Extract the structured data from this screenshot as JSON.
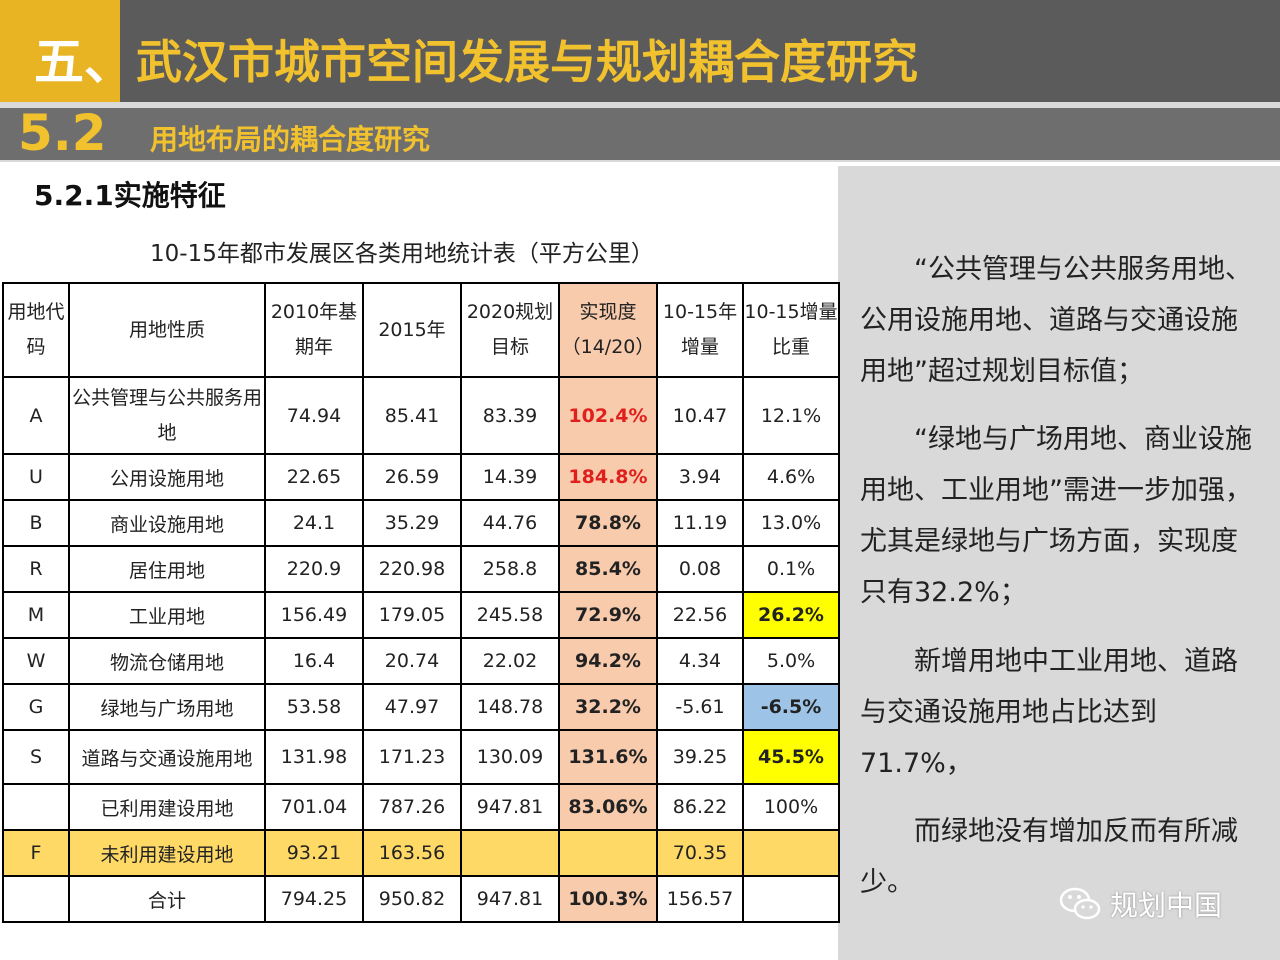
{
  "header": {
    "number": "五、",
    "title": "武汉市城市空间发展与规划耦合度研究",
    "sub_number": "5.2",
    "sub_title": "用地布局的耦合度研究"
  },
  "section": {
    "title": "5.2.1实施特征",
    "table_caption": "10-15年都市发展区各类用地统计表（平方公里）"
  },
  "table": {
    "headers": [
      "用地代码",
      "用地性质",
      "2010年基期年",
      "2015年",
      "2020规划目标",
      "实现度（14/20）",
      "10-15年增量",
      "10-15增量比重"
    ],
    "rows": [
      {
        "code": "A",
        "name": "公共管理与公共服务用地",
        "y2010": "74.94",
        "y2015": "85.41",
        "y2020": "83.39",
        "ratio": "102.4%",
        "increase": "10.47",
        "share": "12.1%"
      },
      {
        "code": "U",
        "name": "公用设施用地",
        "y2010": "22.65",
        "y2015": "26.59",
        "y2020": "14.39",
        "ratio": "184.8%",
        "increase": "3.94",
        "share": "4.6%"
      },
      {
        "code": "B",
        "name": "商业设施用地",
        "y2010": "24.1",
        "y2015": "35.29",
        "y2020": "44.76",
        "ratio": "78.8%",
        "increase": "11.19",
        "share": "13.0%"
      },
      {
        "code": "R",
        "name": "居住用地",
        "y2010": "220.9",
        "y2015": "220.98",
        "y2020": "258.8",
        "ratio": "85.4%",
        "increase": "0.08",
        "share": "0.1%"
      },
      {
        "code": "M",
        "name": "工业用地",
        "y2010": "156.49",
        "y2015": "179.05",
        "y2020": "245.58",
        "ratio": "72.9%",
        "increase": "22.56",
        "share": "26.2%"
      },
      {
        "code": "W",
        "name": "物流仓储用地",
        "y2010": "16.4",
        "y2015": "20.74",
        "y2020": "22.02",
        "ratio": "94.2%",
        "increase": "4.34",
        "share": "5.0%"
      },
      {
        "code": "G",
        "name": "绿地与广场用地",
        "y2010": "53.58",
        "y2015": "47.97",
        "y2020": "148.78",
        "ratio": "32.2%",
        "increase": "-5.61",
        "share": "-6.5%"
      },
      {
        "code": "S",
        "name": "道路与交通设施用地",
        "y2010": "131.98",
        "y2015": "171.23",
        "y2020": "130.09",
        "ratio": "131.6%",
        "increase": "39.25",
        "share": "45.5%"
      },
      {
        "code": "",
        "name": "已利用建设用地",
        "y2010": "701.04",
        "y2015": "787.26",
        "y2020": "947.81",
        "ratio": "83.06%",
        "increase": "86.22",
        "share": "100%"
      },
      {
        "code": "F",
        "name": "未利用建设用地",
        "y2010": "93.21",
        "y2015": "163.56",
        "y2020": "",
        "ratio": "",
        "increase": "70.35",
        "share": ""
      },
      {
        "code": "",
        "name": "合计",
        "y2010": "794.25",
        "y2015": "950.82",
        "y2020": "947.81",
        "ratio": "100.3%",
        "increase": "156.57",
        "share": ""
      }
    ]
  },
  "side": {
    "p1": "“公共管理与公共服务用地、公用设施用地、道路与交通设施用地”超过规划目标值；",
    "p2": "“绿地与广场用地、商业设施用地、工业用地”需进一步加强，尤其是绿地与广场方面，实现度只有32.2%；",
    "p3": "新增用地中工业用地、道路与交通设施用地占比达到71.7%，",
    "p4": "而绿地没有增加反而有所减少。"
  },
  "watermark": {
    "text": "规划中国",
    "icon": "wechat-icon"
  },
  "colors": {
    "header_yellow": "#e8b423",
    "header_dark": "#5b5b5b",
    "ratio_column": "#f8cbad",
    "ratio_red": "#e0201c",
    "highlight_yellow": "#ffff00",
    "highlight_blue": "#9dc3e6",
    "row_f": "#ffd966",
    "side_panel": "#d9d9d9"
  }
}
